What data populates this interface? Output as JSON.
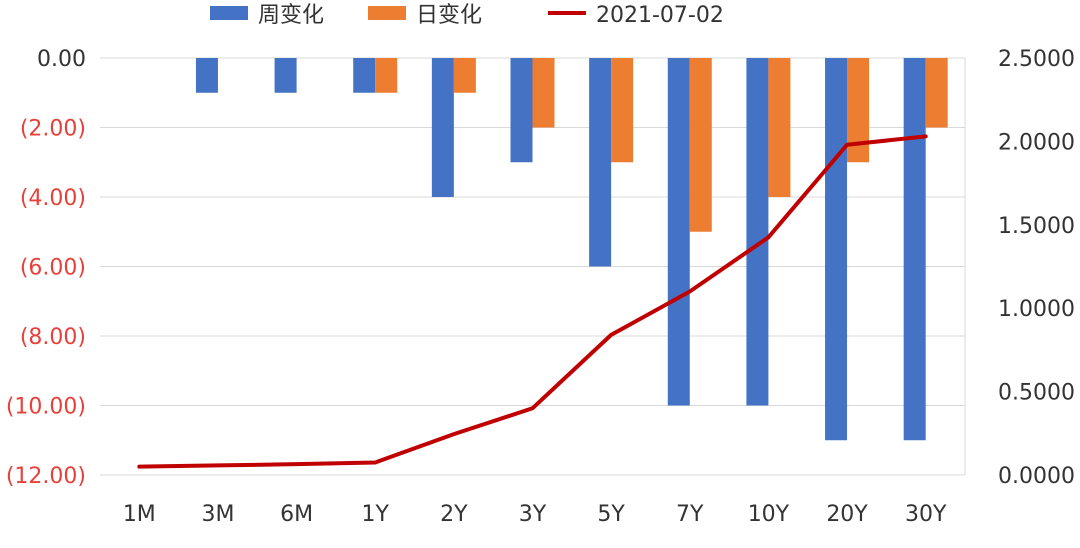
{
  "chart_data": {
    "type": "bar",
    "categories": [
      "1M",
      "3M",
      "6M",
      "1Y",
      "2Y",
      "3Y",
      "5Y",
      "7Y",
      "10Y",
      "20Y",
      "30Y"
    ],
    "series": [
      {
        "name": "周变化",
        "type": "bar",
        "axis": "left",
        "color": "#4472C4",
        "values": [
          0,
          -1,
          -1,
          -1,
          -4,
          -3,
          -6,
          -10,
          -10,
          -11,
          -11
        ]
      },
      {
        "name": "日变化",
        "type": "bar",
        "axis": "left",
        "color": "#ED7D31",
        "values": [
          0,
          0,
          0,
          -1,
          -1,
          -2,
          -3,
          -5,
          -4,
          -3,
          -2
        ]
      },
      {
        "name": "2021-07-02",
        "type": "line",
        "axis": "right",
        "color": "#C00000",
        "values": [
          0.05,
          0.0575,
          0.065,
          0.075,
          0.245,
          0.4,
          0.84,
          1.1,
          1.425,
          1.98,
          2.03
        ]
      }
    ],
    "y_left": {
      "min": -12,
      "max": 0,
      "ticks": [
        "0.00",
        "(2.00)",
        "(4.00)",
        "(6.00)",
        "(8.00)",
        "(10.00)",
        "(12.00)"
      ],
      "negative_color": "#E8413A",
      "zero_color": "#333333"
    },
    "y_right": {
      "min": 0,
      "max": 2.5,
      "ticks": [
        "2.5000",
        "2.0000",
        "1.5000",
        "1.0000",
        "0.5000",
        "0.0000"
      ]
    },
    "grid": true,
    "legend": "top"
  }
}
